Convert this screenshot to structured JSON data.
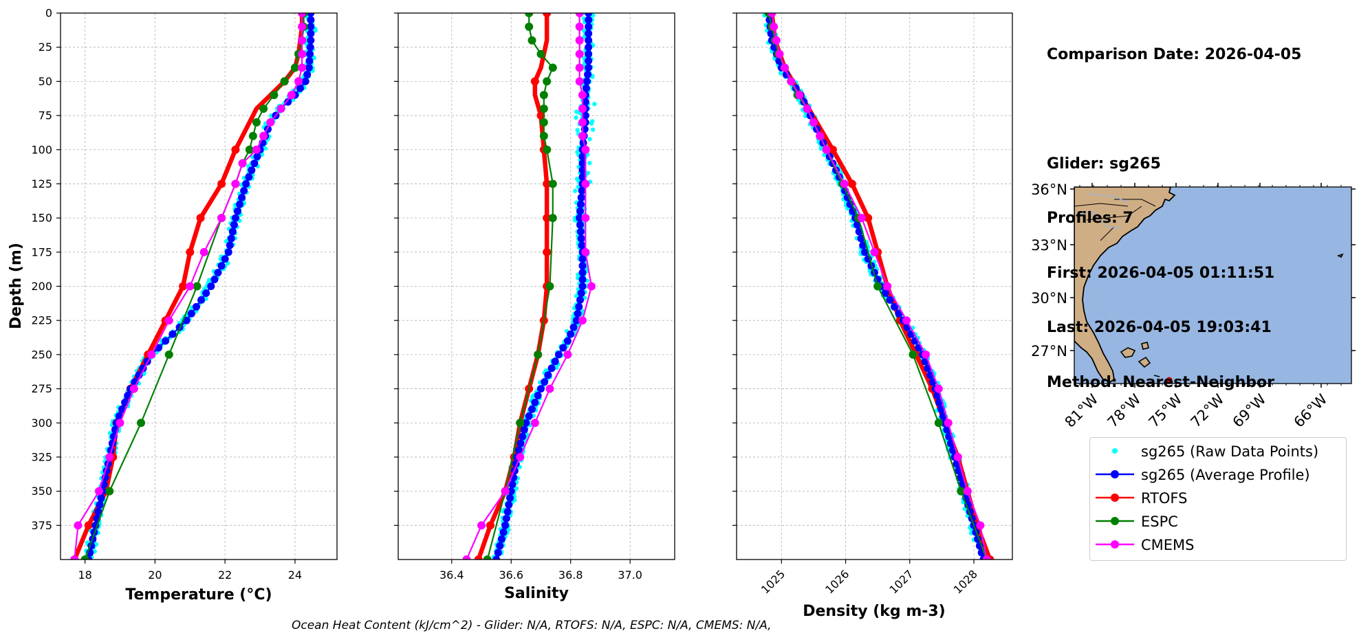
{
  "info": {
    "comparison_date": "Comparison Date: 2026-04-05",
    "glider": "Glider: sg265",
    "profiles": "Profiles: 7",
    "first": "First: 2026-04-05 01:11:51",
    "last": "Last: 2026-04-05 19:03:41",
    "method": "Method: Nearest-Neighbor"
  },
  "footer": "Ocean Heat Content (kJ/cm^2) - Glider: N/A,  RTOFS: N/A,  ESPC: N/A,  CMEMS: N/A,",
  "legend": [
    {
      "label": "sg265 (Raw Data Points)",
      "color": "#00ffff",
      "style": "dot"
    },
    {
      "label": "sg265 (Average Profile)",
      "color": "#0000ff",
      "style": "line-marker"
    },
    {
      "label": "RTOFS",
      "color": "#ff0000",
      "style": "line-marker"
    },
    {
      "label": "ESPC",
      "color": "#008000",
      "style": "line-marker"
    },
    {
      "label": "CMEMS",
      "color": "#ff00ff",
      "style": "line-marker"
    }
  ],
  "colors": {
    "raw": "#00ffff",
    "avg": "#0000ff",
    "rtofs": "#ff0000",
    "espc": "#008000",
    "cmems": "#ff00ff",
    "ocean": "#97b6e1",
    "land": "#cfae85"
  },
  "map": {
    "lat_ticks": [
      "36°N",
      "33°N",
      "30°N",
      "27°N"
    ],
    "lon_ticks": [
      "81°W",
      "78°W",
      "75°W",
      "72°W",
      "69°W",
      "66°W"
    ]
  },
  "chart_data": [
    {
      "type": "line",
      "xlabel": "Temperature (°C)",
      "ylabel": "Depth (m)",
      "xlim": [
        17.3,
        25.2
      ],
      "ylim": [
        400,
        0
      ],
      "xticks": [
        18,
        20,
        22,
        24
      ],
      "yticks": [
        0,
        25,
        50,
        75,
        100,
        125,
        150,
        175,
        200,
        225,
        250,
        275,
        300,
        325,
        350,
        375
      ],
      "grid": true,
      "series": [
        {
          "name": "sg265 (Average Profile)",
          "depth": [
            0,
            20,
            40,
            50,
            60,
            70,
            80,
            100,
            125,
            150,
            175,
            200,
            225,
            250,
            275,
            300,
            325,
            350,
            375,
            400
          ],
          "values": [
            24.45,
            24.45,
            24.4,
            24.3,
            24.0,
            23.6,
            23.3,
            23.0,
            22.6,
            22.3,
            22.1,
            21.6,
            20.9,
            19.9,
            19.3,
            18.9,
            18.7,
            18.5,
            18.3,
            18.1
          ]
        },
        {
          "name": "RTOFS",
          "depth": [
            0,
            10,
            20,
            30,
            40,
            50,
            60,
            70,
            80,
            100,
            125,
            150,
            175,
            200,
            225,
            250,
            275,
            300,
            325,
            350,
            375,
            400
          ],
          "values": [
            24.2,
            24.2,
            24.15,
            24.1,
            24.0,
            23.7,
            23.3,
            22.9,
            22.7,
            22.3,
            21.9,
            21.3,
            21.0,
            20.8,
            20.3,
            19.8,
            19.3,
            18.9,
            18.8,
            18.6,
            18.1,
            17.7
          ]
        },
        {
          "name": "ESPC",
          "depth": [
            0,
            10,
            20,
            30,
            40,
            50,
            60,
            70,
            80,
            90,
            100,
            110,
            125,
            150,
            200,
            250,
            300,
            350,
            400
          ],
          "values": [
            24.25,
            24.25,
            24.2,
            24.1,
            24.0,
            23.7,
            23.4,
            23.1,
            22.9,
            22.8,
            22.7,
            22.5,
            22.3,
            21.9,
            21.2,
            20.4,
            19.6,
            18.7,
            18.0
          ]
        },
        {
          "name": "CMEMS",
          "depth": [
            0,
            10,
            20,
            30,
            40,
            50,
            60,
            70,
            80,
            90,
            100,
            110,
            125,
            150,
            175,
            200,
            225,
            250,
            275,
            300,
            325,
            350,
            375,
            400
          ],
          "values": [
            24.2,
            24.2,
            24.2,
            24.2,
            24.2,
            24.1,
            23.9,
            23.6,
            23.3,
            23.1,
            22.9,
            22.5,
            22.3,
            21.9,
            21.4,
            21.0,
            20.4,
            19.9,
            19.4,
            19.0,
            18.7,
            18.4,
            17.8,
            17.7
          ]
        }
      ]
    },
    {
      "type": "line",
      "xlabel": "Salinity",
      "ylabel": "",
      "xlim": [
        36.22,
        37.15
      ],
      "ylim": [
        400,
        0
      ],
      "xticks": [
        36.4,
        36.6,
        36.8,
        37.0
      ],
      "grid": true,
      "series": [
        {
          "name": "sg265 (Average Profile)",
          "depth": [
            0,
            20,
            40,
            60,
            80,
            100,
            125,
            150,
            175,
            200,
            225,
            240,
            250,
            275,
            300,
            325,
            350,
            375,
            400
          ],
          "values": [
            36.86,
            36.86,
            36.86,
            36.85,
            36.85,
            36.84,
            36.84,
            36.83,
            36.84,
            36.84,
            36.82,
            36.79,
            36.76,
            36.7,
            36.65,
            36.62,
            36.6,
            36.58,
            36.55
          ]
        },
        {
          "name": "RTOFS",
          "depth": [
            0,
            10,
            20,
            30,
            40,
            50,
            60,
            75,
            100,
            125,
            150,
            175,
            200,
            225,
            250,
            275,
            300,
            325,
            350,
            375,
            400
          ],
          "values": [
            36.72,
            36.72,
            36.72,
            36.71,
            36.7,
            36.68,
            36.68,
            36.7,
            36.71,
            36.72,
            36.72,
            36.72,
            36.72,
            36.71,
            36.69,
            36.66,
            36.63,
            36.61,
            36.58,
            36.53,
            36.49
          ]
        },
        {
          "name": "ESPC",
          "depth": [
            0,
            10,
            20,
            30,
            40,
            50,
            60,
            70,
            80,
            90,
            100,
            125,
            150,
            200,
            250,
            300,
            350,
            400
          ],
          "values": [
            36.66,
            36.66,
            36.67,
            36.7,
            36.74,
            36.72,
            36.71,
            36.71,
            36.71,
            36.71,
            36.72,
            36.74,
            36.74,
            36.73,
            36.69,
            36.63,
            36.58,
            36.52
          ]
        },
        {
          "name": "CMEMS",
          "depth": [
            0,
            10,
            20,
            30,
            40,
            50,
            60,
            70,
            80,
            90,
            100,
            125,
            150,
            175,
            200,
            225,
            250,
            275,
            300,
            325,
            350,
            375,
            400
          ],
          "values": [
            36.83,
            36.83,
            36.83,
            36.83,
            36.83,
            36.83,
            36.84,
            36.84,
            36.84,
            36.84,
            36.85,
            36.85,
            36.85,
            36.85,
            36.87,
            36.84,
            36.79,
            36.73,
            36.68,
            36.63,
            36.58,
            36.5,
            36.45
          ]
        }
      ]
    },
    {
      "type": "line",
      "xlabel": "Density (kg m-3)",
      "ylabel": "",
      "xlim": [
        1024.3,
        1028.6
      ],
      "ylim": [
        400,
        0
      ],
      "xticks": [
        1025,
        1026,
        1027,
        1028
      ],
      "grid": true,
      "series": [
        {
          "name": "sg265 (Average Profile)",
          "depth": [
            0,
            20,
            40,
            60,
            80,
            100,
            125,
            150,
            175,
            200,
            225,
            250,
            275,
            300,
            325,
            350,
            375,
            400
          ],
          "values": [
            1024.8,
            1024.85,
            1025.0,
            1025.3,
            1025.5,
            1025.7,
            1025.95,
            1026.15,
            1026.3,
            1026.55,
            1026.9,
            1027.2,
            1027.4,
            1027.55,
            1027.7,
            1027.85,
            1028.0,
            1028.15
          ]
        },
        {
          "name": "RTOFS",
          "depth": [
            0,
            20,
            40,
            60,
            80,
            100,
            125,
            150,
            175,
            200,
            225,
            250,
            275,
            300,
            325,
            350,
            375,
            400
          ],
          "values": [
            1024.85,
            1024.9,
            1025.05,
            1025.3,
            1025.55,
            1025.8,
            1026.1,
            1026.35,
            1026.5,
            1026.65,
            1026.85,
            1027.1,
            1027.35,
            1027.55,
            1027.75,
            1027.9,
            1028.05,
            1028.25
          ]
        },
        {
          "name": "ESPC",
          "depth": [
            0,
            10,
            20,
            30,
            40,
            50,
            60,
            70,
            80,
            90,
            100,
            125,
            150,
            200,
            250,
            300,
            350,
            400
          ],
          "values": [
            1024.8,
            1024.85,
            1024.9,
            1024.95,
            1025.05,
            1025.15,
            1025.25,
            1025.4,
            1025.5,
            1025.6,
            1025.7,
            1025.95,
            1026.2,
            1026.5,
            1027.05,
            1027.45,
            1027.8,
            1028.2
          ]
        },
        {
          "name": "CMEMS",
          "depth": [
            0,
            10,
            20,
            30,
            40,
            50,
            60,
            70,
            80,
            90,
            100,
            125,
            150,
            175,
            200,
            225,
            250,
            275,
            300,
            325,
            350,
            375,
            400
          ],
          "values": [
            1024.85,
            1024.88,
            1024.92,
            1024.97,
            1025.05,
            1025.15,
            1025.28,
            1025.4,
            1025.5,
            1025.6,
            1025.7,
            1025.98,
            1026.25,
            1026.45,
            1026.65,
            1026.95,
            1027.25,
            1027.45,
            1027.6,
            1027.75,
            1027.9,
            1028.1,
            1028.2
          ]
        }
      ]
    }
  ]
}
